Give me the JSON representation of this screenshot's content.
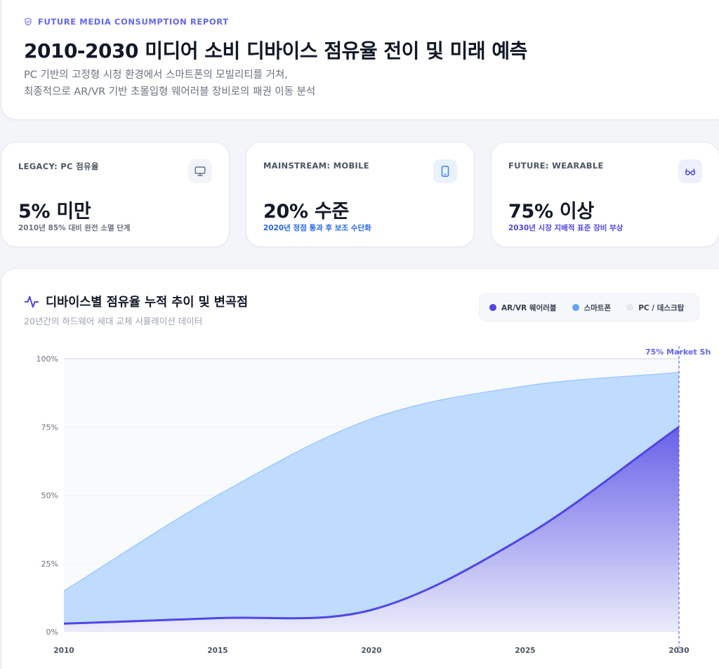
{
  "header": {
    "eyebrow": "FUTURE MEDIA CONSUMPTION REPORT",
    "title": "2010-2030 미디어 소비 디바이스 점유율 전이 및 미래 예측",
    "subtitle_line1": "PC 기반의 고정형 시청 환경에서 스마트폰의 모빌리티를 거쳐,",
    "subtitle_line2": "최종적으로 AR/VR 기반 초몰입형 웨어러블 장비로의 패권 이동 분석"
  },
  "kpis": [
    {
      "label": "LEGACY: PC 점유율",
      "value": "5% 미만",
      "note": "2010년 85% 대비 완전 소멸 단계",
      "icon": "monitor-icon",
      "note_color": "#6b7280",
      "icon_color": "#64748b",
      "icon_bg": "#f1f5f9"
    },
    {
      "label": "MAINSTREAM: MOBILE",
      "value": "20% 수준",
      "note": "2020년 정점 통과 후 보조 수단화",
      "icon": "smartphone-icon",
      "note_color": "#2563eb",
      "icon_color": "#3b82f6",
      "icon_bg": "#eaf2fe"
    },
    {
      "label": "FUTURE: WEARABLE",
      "value": "75% 이상",
      "note": "2030년 시장 지배적 표준 장비 부상",
      "icon": "glasses-icon",
      "note_color": "#4f46e5",
      "icon_color": "#4f46e5",
      "icon_bg": "#eef0fe"
    }
  ],
  "chart_section": {
    "title": "디바이스별 점유율 누적 추이 및 변곡점",
    "subtitle": "20년간의 하드웨어 세대 교체 시뮬레이션 데이터",
    "annotation": "75% Market Sh"
  },
  "legend": [
    {
      "label": "AR/VR 웨어러블",
      "color": "#4f46e5"
    },
    {
      "label": "스마트폰",
      "color": "#60a5fa"
    },
    {
      "label": "PC / 데스크탑",
      "color": "#e2e8f0"
    }
  ],
  "chart_data": {
    "type": "area",
    "stacked": true,
    "x": [
      2010,
      2015,
      2020,
      2025,
      2030
    ],
    "series": [
      {
        "name": "AR/VR 웨어러블",
        "values": [
          3,
          5,
          8,
          35,
          75
        ]
      },
      {
        "name": "스마트폰",
        "values": [
          12,
          45,
          70,
          55,
          20
        ]
      },
      {
        "name": "PC / 데스크탑",
        "values": [
          85,
          50,
          22,
          10,
          5
        ]
      }
    ],
    "xticks": [
      "2010",
      "2015",
      "2020",
      "2025",
      "2030"
    ],
    "yticks": [
      "0%",
      "25%",
      "50%",
      "75%",
      "100%"
    ],
    "ylim": [
      0,
      100
    ],
    "colors": {
      "wearable": "#4f46e5",
      "smartphone": "#bfdbfe",
      "pc": "#f8fafc"
    },
    "legend_position": "top-right"
  }
}
